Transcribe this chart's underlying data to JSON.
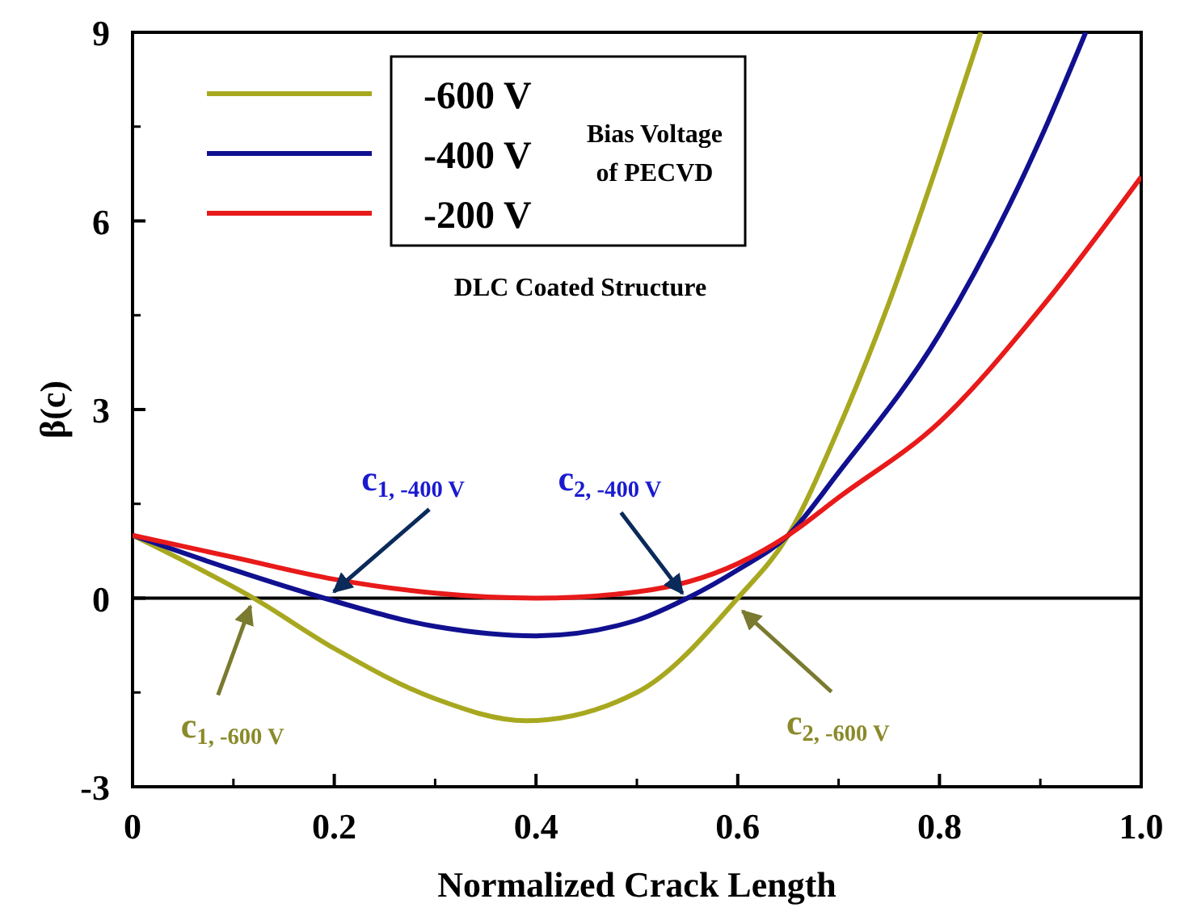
{
  "chart_data": {
    "type": "line",
    "xlabel": "Normalized Crack Length",
    "ylabel": "β(c)",
    "legend_title": "Bias Voltage of PECVD",
    "xlim": [
      0,
      1
    ],
    "ylim": [
      -3,
      9
    ],
    "xticks": [
      0,
      0.2,
      0.4,
      0.6,
      0.8,
      {
        "value": 1,
        "label": "1.0"
      }
    ],
    "yticks": [
      -3,
      0,
      3,
      6,
      9
    ],
    "legend": "top left",
    "grid": false,
    "marker": "none",
    "line_style": "solid",
    "series": [
      {
        "name": "-600 V",
        "color": "#a8a820",
        "x": [
          0,
          0.05,
          0.12,
          0.2,
          0.3,
          0.39,
          0.5,
          0.6,
          0.65,
          0.7,
          0.75,
          0.8,
          0.841
        ],
        "values": [
          1,
          0.6,
          0,
          -0.8,
          -1.6,
          -1.95,
          -1.5,
          0,
          1.0,
          2.7,
          4.7,
          7.0,
          9
        ]
      },
      {
        "name": "-400 V",
        "color": "#101090",
        "x": [
          0,
          0.1,
          0.19,
          0.3,
          0.4,
          0.5,
          0.55,
          0.6,
          0.65,
          0.7,
          0.8,
          0.9,
          0.945
        ],
        "values": [
          1,
          0.45,
          0,
          -0.45,
          -0.6,
          -0.35,
          0,
          0.45,
          1.0,
          2.0,
          4.2,
          7.3,
          9
        ]
      },
      {
        "name": "-200 V",
        "color": "#e81a1a",
        "x": [
          0,
          0.1,
          0.2,
          0.3,
          0.4,
          0.5,
          0.6,
          0.65,
          0.7,
          0.8,
          0.9,
          1.0
        ],
        "values": [
          1,
          0.65,
          0.3,
          0.08,
          0,
          0.1,
          0.55,
          1.0,
          1.6,
          2.8,
          4.6,
          6.7
        ]
      }
    ],
    "ref_lines": [
      {
        "axis": "y",
        "value": 0,
        "color": "#000000"
      }
    ],
    "annotations": [
      "DLC Coated Structure",
      {
        "text": "c$_{1, -400 V}$",
        "x": 0.19,
        "y": 0
      },
      {
        "text": "c$_{2, -400 V}$",
        "x": 0.55,
        "y": 0
      },
      {
        "text": "c$_{1, -600 V}$",
        "x": 0.12,
        "y": 0
      },
      {
        "text": "c$_{2, -600 V}$",
        "x": 0.6,
        "y": 0
      }
    ]
  }
}
